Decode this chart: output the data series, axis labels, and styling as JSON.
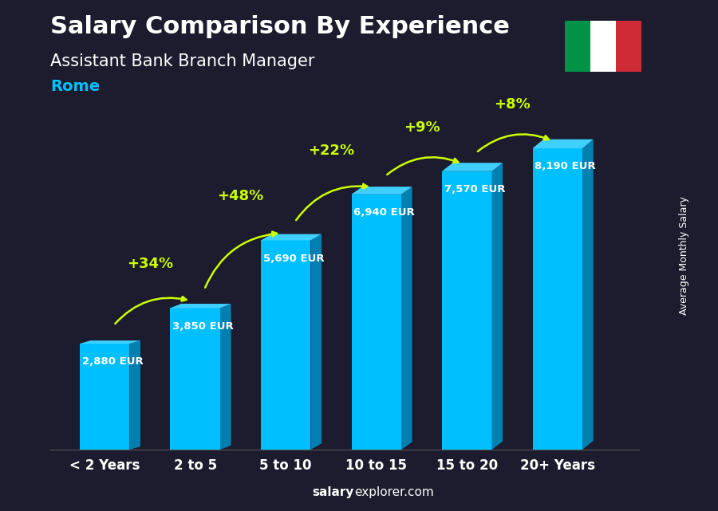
{
  "title": "Salary Comparison By Experience",
  "subtitle": "Assistant Bank Branch Manager",
  "city": "Rome",
  "ylabel": "Average Monthly Salary",
  "categories": [
    "< 2 Years",
    "2 to 5",
    "5 to 10",
    "10 to 15",
    "15 to 20",
    "20+ Years"
  ],
  "values": [
    2880,
    3850,
    5690,
    6940,
    7570,
    8190
  ],
  "pct_changes": [
    "+34%",
    "+48%",
    "+22%",
    "+9%",
    "+8%"
  ],
  "bar_color_face": "#00BFFF",
  "bar_color_side": "#0080B0",
  "bar_color_top": "#40D0FF",
  "bg_color": "#1a1a2e",
  "title_color": "#FFFFFF",
  "subtitle_color": "#FFFFFF",
  "city_color": "#00BFFF",
  "value_color": "#FFFFFF",
  "pct_color": "#CCFF00",
  "arrow_color": "#CCFF00",
  "watermark": "salaryexplorer.com",
  "flag_colors": [
    "#009246",
    "#FFFFFF",
    "#CE2B37"
  ],
  "ylim": [
    0,
    10000
  ]
}
